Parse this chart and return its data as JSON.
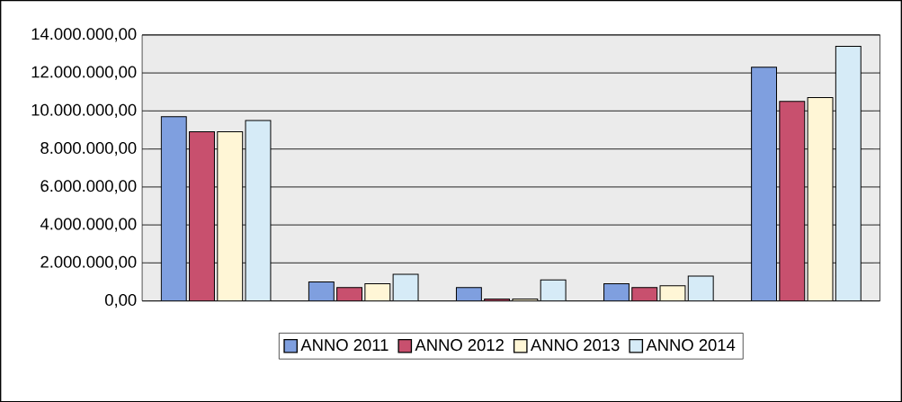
{
  "chart_data": {
    "type": "bar",
    "categories": [
      null,
      null,
      null,
      null,
      null
    ],
    "series": [
      {
        "name": "ANNO 2011",
        "color": "#7f9fdf",
        "values": [
          9700000,
          1000000,
          700000,
          900000,
          12300000
        ]
      },
      {
        "name": "ANNO 2012",
        "color": "#c8506e",
        "values": [
          8900000,
          700000,
          100000,
          700000,
          10500000
        ]
      },
      {
        "name": "ANNO 2013",
        "color": "#fff6d6",
        "values": [
          8900000,
          900000,
          100000,
          800000,
          10700000
        ]
      },
      {
        "name": "ANNO 2014",
        "color": "#d6ebf7",
        "values": [
          9500000,
          1400000,
          1100000,
          1300000,
          13400000
        ]
      }
    ],
    "ylim": [
      0,
      14000000
    ],
    "yticks": [
      {
        "value": 0,
        "label": "0,00"
      },
      {
        "value": 2000000,
        "label": "2.000.000,00"
      },
      {
        "value": 4000000,
        "label": "4.000.000,00"
      },
      {
        "value": 6000000,
        "label": "6.000.000,00"
      },
      {
        "value": 8000000,
        "label": "8.000.000,00"
      },
      {
        "value": 10000000,
        "label": "10.000.000,00"
      },
      {
        "value": 12000000,
        "label": "12.000.000,00"
      },
      {
        "value": 14000000,
        "label": "14.000.000,00"
      }
    ],
    "grid": "y",
    "legend": "bottom"
  }
}
